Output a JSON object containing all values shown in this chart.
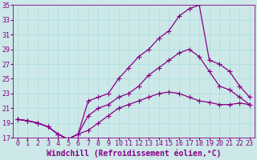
{
  "xlabel": "Windchill (Refroidissement éolien,°C)",
  "background_color": "#cce8e8",
  "line_color": "#880088",
  "xlim": [
    -0.5,
    23.5
  ],
  "ylim": [
    17,
    35
  ],
  "yticks": [
    17,
    19,
    21,
    23,
    25,
    27,
    29,
    31,
    33,
    35
  ],
  "xticks": [
    0,
    1,
    2,
    3,
    4,
    5,
    6,
    7,
    8,
    9,
    10,
    11,
    12,
    13,
    14,
    15,
    16,
    17,
    18,
    19,
    20,
    21,
    22,
    23
  ],
  "line1_x": [
    0,
    1,
    2,
    3,
    4,
    5,
    6,
    7,
    8,
    9,
    10,
    11,
    12,
    13,
    14,
    15,
    16,
    17,
    18,
    19,
    20,
    21,
    22,
    23
  ],
  "line1_y": [
    19.5,
    19.3,
    19.0,
    18.5,
    17.5,
    16.8,
    17.5,
    18.0,
    19.0,
    20.0,
    21.0,
    21.5,
    22.0,
    22.5,
    23.0,
    23.2,
    23.0,
    22.5,
    22.0,
    21.8,
    21.5,
    21.5,
    21.7,
    21.5
  ],
  "line2_x": [
    0,
    1,
    2,
    3,
    4,
    5,
    6,
    7,
    8,
    9,
    10,
    11,
    12,
    13,
    14,
    15,
    16,
    17,
    18,
    19,
    20,
    21,
    22,
    23
  ],
  "line2_y": [
    19.5,
    19.3,
    19.0,
    18.5,
    17.5,
    16.8,
    17.5,
    22.0,
    22.5,
    23.0,
    25.0,
    26.5,
    28.0,
    29.0,
    30.5,
    31.5,
    33.5,
    34.5,
    35.0,
    27.5,
    27.0,
    26.0,
    24.0,
    22.5
  ],
  "line3_x": [
    0,
    1,
    2,
    3,
    4,
    5,
    6,
    7,
    8,
    9,
    10,
    11,
    12,
    13,
    14,
    15,
    16,
    17,
    18,
    19,
    20,
    21,
    22,
    23
  ],
  "line3_y": [
    19.5,
    19.3,
    19.0,
    18.5,
    17.5,
    16.8,
    17.5,
    20.0,
    21.0,
    21.5,
    22.5,
    23.0,
    24.0,
    25.5,
    26.5,
    27.5,
    28.5,
    29.0,
    28.0,
    26.0,
    24.0,
    23.5,
    22.5,
    21.5
  ],
  "marker": "+",
  "marker_size": 4,
  "grid_color": "#aadddd",
  "font_size": 6,
  "xlabel_font_size": 7
}
